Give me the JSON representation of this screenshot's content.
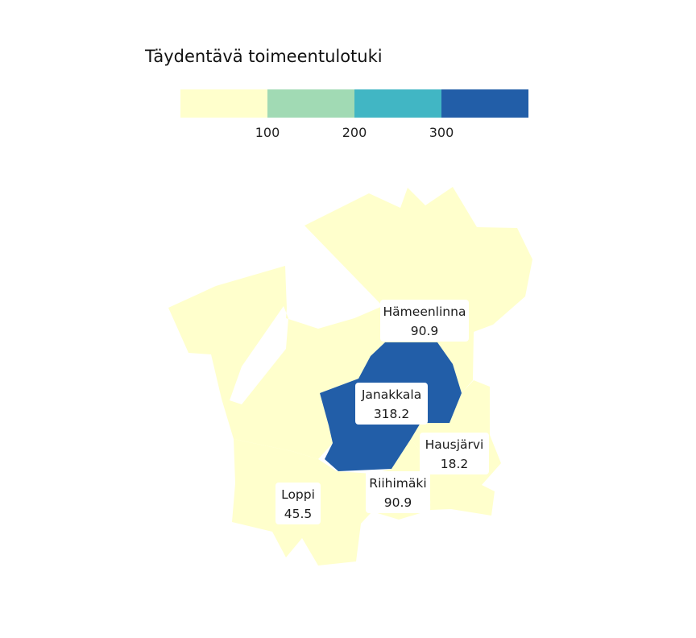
{
  "title": "Täydentävä toimeentulotuki",
  "legend": {
    "bins": [
      {
        "from": 0,
        "to": 100,
        "color": "#ffffcc"
      },
      {
        "from": 100,
        "to": 200,
        "color": "#a1dab4"
      },
      {
        "from": 200,
        "to": 300,
        "color": "#41b6c4"
      },
      {
        "from": 300,
        "to": 400,
        "color": "#225ea8"
      }
    ],
    "ticks": [
      "100",
      "200",
      "300"
    ]
  },
  "regions": [
    {
      "name": "Hämeenlinna",
      "value": "90.9"
    },
    {
      "name": "Janakkala",
      "value": "318.2"
    },
    {
      "name": "Hausjärvi",
      "value": "18.2"
    },
    {
      "name": "Riihimäki",
      "value": "90.9"
    },
    {
      "name": "Loppi",
      "value": "45.5"
    }
  ]
}
